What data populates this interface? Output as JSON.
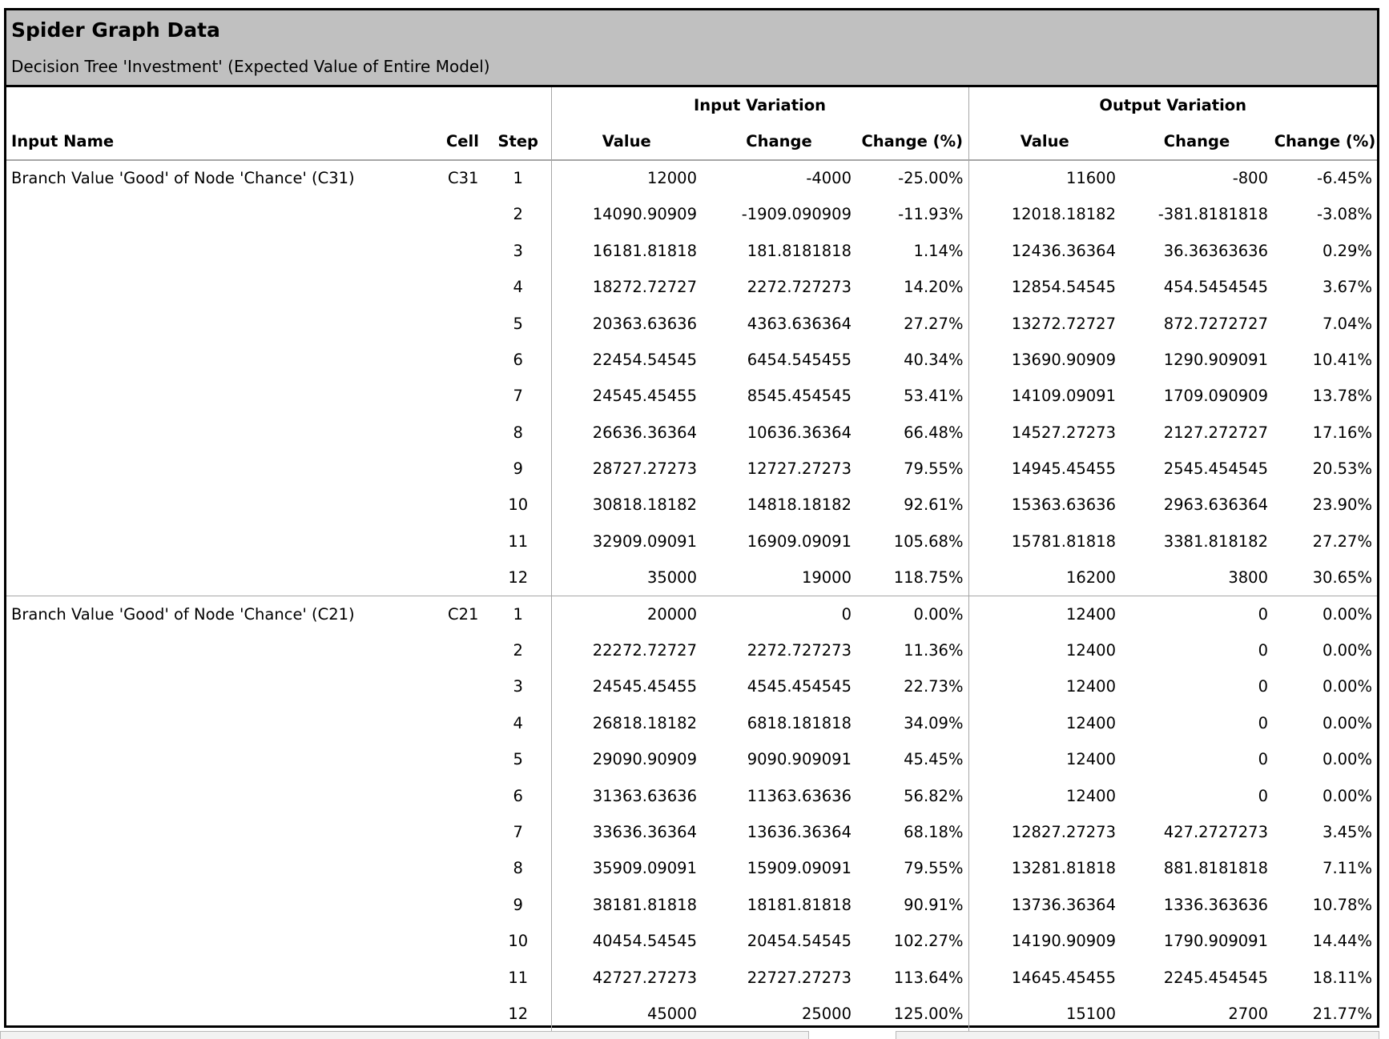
{
  "report": {
    "title": "Spider Graph Data",
    "subtitle": "Decision Tree 'Investment' (Expected Value of Entire Model)"
  },
  "table": {
    "group_headers": {
      "input": "Input Variation",
      "output": "Output Variation"
    },
    "columns": [
      "Input Name",
      "Cell",
      "Step",
      "Value",
      "Change",
      "Change (%)",
      "Value",
      "Change",
      "Change (%)"
    ],
    "groups": [
      {
        "input_name": "Branch Value 'Good' of Node 'Chance' (C31)",
        "cell": "C31",
        "rows": [
          [
            "1",
            "12000",
            "-4000",
            "-25.00%",
            "11600",
            "-800",
            "-6.45%"
          ],
          [
            "2",
            "14090.90909",
            "-1909.090909",
            "-11.93%",
            "12018.18182",
            "-381.8181818",
            "-3.08%"
          ],
          [
            "3",
            "16181.81818",
            "181.8181818",
            "1.14%",
            "12436.36364",
            "36.36363636",
            "0.29%"
          ],
          [
            "4",
            "18272.72727",
            "2272.727273",
            "14.20%",
            "12854.54545",
            "454.5454545",
            "3.67%"
          ],
          [
            "5",
            "20363.63636",
            "4363.636364",
            "27.27%",
            "13272.72727",
            "872.7272727",
            "7.04%"
          ],
          [
            "6",
            "22454.54545",
            "6454.545455",
            "40.34%",
            "13690.90909",
            "1290.909091",
            "10.41%"
          ],
          [
            "7",
            "24545.45455",
            "8545.454545",
            "53.41%",
            "14109.09091",
            "1709.090909",
            "13.78%"
          ],
          [
            "8",
            "26636.36364",
            "10636.36364",
            "66.48%",
            "14527.27273",
            "2127.272727",
            "17.16%"
          ],
          [
            "9",
            "28727.27273",
            "12727.27273",
            "79.55%",
            "14945.45455",
            "2545.454545",
            "20.53%"
          ],
          [
            "10",
            "30818.18182",
            "14818.18182",
            "92.61%",
            "15363.63636",
            "2963.636364",
            "23.90%"
          ],
          [
            "11",
            "32909.09091",
            "16909.09091",
            "105.68%",
            "15781.81818",
            "3381.818182",
            "27.27%"
          ],
          [
            "12",
            "35000",
            "19000",
            "118.75%",
            "16200",
            "3800",
            "30.65%"
          ]
        ]
      },
      {
        "input_name": "Branch Value 'Good' of Node 'Chance' (C21)",
        "cell": "C21",
        "rows": [
          [
            "1",
            "20000",
            "0",
            "0.00%",
            "12400",
            "0",
            "0.00%"
          ],
          [
            "2",
            "22272.72727",
            "2272.727273",
            "11.36%",
            "12400",
            "0",
            "0.00%"
          ],
          [
            "3",
            "24545.45455",
            "4545.454545",
            "22.73%",
            "12400",
            "0",
            "0.00%"
          ],
          [
            "4",
            "26818.18182",
            "6818.181818",
            "34.09%",
            "12400",
            "0",
            "0.00%"
          ],
          [
            "5",
            "29090.90909",
            "9090.909091",
            "45.45%",
            "12400",
            "0",
            "0.00%"
          ],
          [
            "6",
            "31363.63636",
            "11363.63636",
            "56.82%",
            "12400",
            "0",
            "0.00%"
          ],
          [
            "7",
            "33636.36364",
            "13636.36364",
            "68.18%",
            "12827.27273",
            "427.2727273",
            "3.45%"
          ],
          [
            "8",
            "35909.09091",
            "15909.09091",
            "79.55%",
            "13281.81818",
            "881.8181818",
            "7.11%"
          ],
          [
            "9",
            "38181.81818",
            "18181.81818",
            "90.91%",
            "13736.36364",
            "1336.363636",
            "10.78%"
          ],
          [
            "10",
            "40454.54545",
            "20454.54545",
            "102.27%",
            "14190.90909",
            "1790.909091",
            "14.44%"
          ],
          [
            "11",
            "42727.27273",
            "22727.27273",
            "113.64%",
            "14645.45455",
            "2245.454545",
            "18.11%"
          ],
          [
            "12",
            "45000",
            "25000",
            "125.00%",
            "15100",
            "2700",
            "21.77%"
          ]
        ]
      }
    ]
  }
}
